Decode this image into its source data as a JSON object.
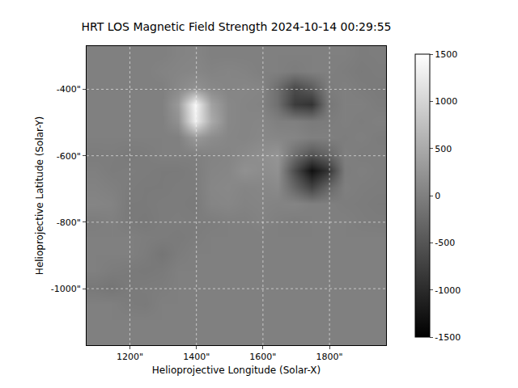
{
  "chart_data": {
    "type": "heatmap",
    "title": "HRT LOS Magnetic Field Strength 2024-10-14 00:29:55",
    "x_label": "Helioprojective Longitude (Solar-X)",
    "y_label": "Helioprojective Latitude (Solar-Y)",
    "x": [
      1095,
      1145,
      1195,
      1245,
      1295,
      1345,
      1395,
      1445,
      1495,
      1545,
      1595,
      1645,
      1695,
      1745,
      1795,
      1845,
      1895,
      1945
    ],
    "y": [
      -1145,
      -1095,
      -1045,
      -995,
      -945,
      -895,
      -845,
      -795,
      -745,
      -695,
      -645,
      -595,
      -545,
      -495,
      -445,
      -395,
      -345,
      -295
    ],
    "z": [
      [
        0,
        0,
        0,
        0,
        0,
        0,
        0,
        0,
        0,
        0,
        0,
        0,
        0,
        0,
        0,
        0,
        0,
        0
      ],
      [
        0,
        0,
        0,
        0,
        0,
        0,
        0,
        0,
        0,
        0,
        0,
        0,
        0,
        0,
        0,
        0,
        0,
        0
      ],
      [
        0,
        0,
        -40,
        -60,
        0,
        0,
        0,
        0,
        0,
        0,
        0,
        0,
        0,
        0,
        0,
        0,
        0,
        0
      ],
      [
        -80,
        -120,
        -60,
        -40,
        -30,
        0,
        0,
        0,
        0,
        0,
        0,
        0,
        0,
        0,
        0,
        0,
        0,
        0
      ],
      [
        0,
        -40,
        -60,
        -80,
        -60,
        0,
        0,
        0,
        0,
        0,
        0,
        0,
        0,
        0,
        0,
        0,
        0,
        0
      ],
      [
        0,
        0,
        0,
        -40,
        -120,
        -40,
        0,
        0,
        0,
        0,
        0,
        0,
        0,
        0,
        0,
        0,
        0,
        0
      ],
      [
        0,
        0,
        0,
        -30,
        -40,
        -60,
        -30,
        0,
        0,
        0,
        0,
        0,
        0,
        0,
        0,
        0,
        0,
        0
      ],
      [
        -30,
        0,
        -60,
        -80,
        -40,
        -30,
        -40,
        -30,
        0,
        0,
        40,
        0,
        -30,
        0,
        0,
        0,
        -30,
        -40
      ],
      [
        60,
        40,
        -60,
        -60,
        -40,
        -40,
        -60,
        60,
        80,
        40,
        60,
        40,
        60,
        0,
        0,
        -30,
        -40,
        -60
      ],
      [
        30,
        0,
        -40,
        -60,
        -60,
        -40,
        -40,
        80,
        100,
        60,
        80,
        120,
        -300,
        -700,
        -300,
        0,
        -30,
        -40
      ],
      [
        0,
        -40,
        -30,
        -40,
        -60,
        -60,
        -30,
        60,
        80,
        200,
        150,
        200,
        -600,
        -1300,
        -900,
        -40,
        0,
        -30
      ],
      [
        -40,
        -30,
        -60,
        -40,
        0,
        0,
        0,
        40,
        60,
        120,
        180,
        250,
        -200,
        -500,
        -300,
        0,
        -40,
        -30
      ],
      [
        0,
        0,
        0,
        0,
        0,
        0,
        300,
        150,
        80,
        60,
        100,
        80,
        60,
        0,
        0,
        -30,
        0,
        -40
      ],
      [
        0,
        0,
        0,
        0,
        0,
        200,
        1300,
        500,
        100,
        60,
        80,
        0,
        0,
        -60,
        -40,
        0,
        -30,
        0
      ],
      [
        0,
        0,
        0,
        0,
        0,
        300,
        1400,
        400,
        100,
        60,
        40,
        -200,
        -800,
        -900,
        -100,
        0,
        0,
        -40
      ],
      [
        0,
        0,
        0,
        0,
        0,
        100,
        200,
        100,
        60,
        80,
        60,
        -200,
        -600,
        -400,
        -40,
        0,
        -40,
        -60
      ],
      [
        0,
        0,
        0,
        0,
        40,
        60,
        80,
        40,
        60,
        40,
        0,
        0,
        -40,
        0,
        0,
        -30,
        -60,
        -40
      ],
      [
        0,
        0,
        0,
        0,
        0,
        40,
        60,
        0,
        0,
        0,
        0,
        0,
        0,
        0,
        0,
        0,
        -40,
        -30
      ]
    ],
    "xlim": [
      1070,
      1970
    ],
    "ylim": [
      -1170,
      -270
    ],
    "xticks": [
      {
        "value": 1200,
        "label": "1200\""
      },
      {
        "value": 1400,
        "label": "1400\""
      },
      {
        "value": 1600,
        "label": "1600\""
      },
      {
        "value": 1800,
        "label": "1800\""
      }
    ],
    "yticks": [
      {
        "value": -1000,
        "label": "-1000\""
      },
      {
        "value": -800,
        "label": "-800\""
      },
      {
        "value": -600,
        "label": "-600\""
      },
      {
        "value": -400,
        "label": "-400\""
      }
    ],
    "zlim": [
      -1500,
      1500
    ],
    "zticks": [
      -1500,
      -1000,
      -500,
      0,
      500,
      1000,
      1500
    ],
    "grid": true
  }
}
